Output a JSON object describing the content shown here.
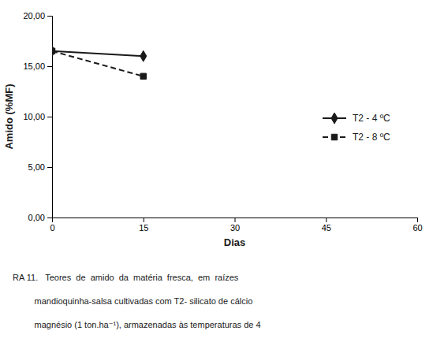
{
  "chart_data": {
    "type": "line",
    "x_label": "Dias",
    "y_label": "Amido (%MF)",
    "x": [
      0,
      15
    ],
    "series": [
      {
        "name": "T2 - 4 ºC",
        "color": "#1a1a1a",
        "values": [
          16.5,
          16.0
        ],
        "line_style": "solid",
        "marker": "diamond"
      },
      {
        "name": "T2 - 8 ºC",
        "color": "#1a1a1a",
        "values": [
          16.5,
          14.0
        ],
        "line_style": "dashed",
        "marker": "square"
      }
    ],
    "xlim": [
      0,
      60
    ],
    "xticks": [
      0,
      15,
      30,
      45,
      60
    ],
    "ylim": [
      0,
      20
    ],
    "yticks": [
      {
        "value": 0.0,
        "label": "0,00"
      },
      {
        "value": 5.0,
        "label": "5,00"
      },
      {
        "value": 10.0,
        "label": "10,00"
      },
      {
        "value": 15.0,
        "label": "15,00"
      },
      {
        "value": 20.0,
        "label": "20,00"
      }
    ],
    "grid": false,
    "legend": "right",
    "annotations": [
      "RA 11.   Teores  de  amido  da  matéria  fresca,  em  raízes",
      "         mandioquinha-salsa cultivadas com T2- silicato de cálcio",
      "         magnésio (1 ton.ha⁻¹), armazenadas às temperaturas de 4"
    ]
  }
}
